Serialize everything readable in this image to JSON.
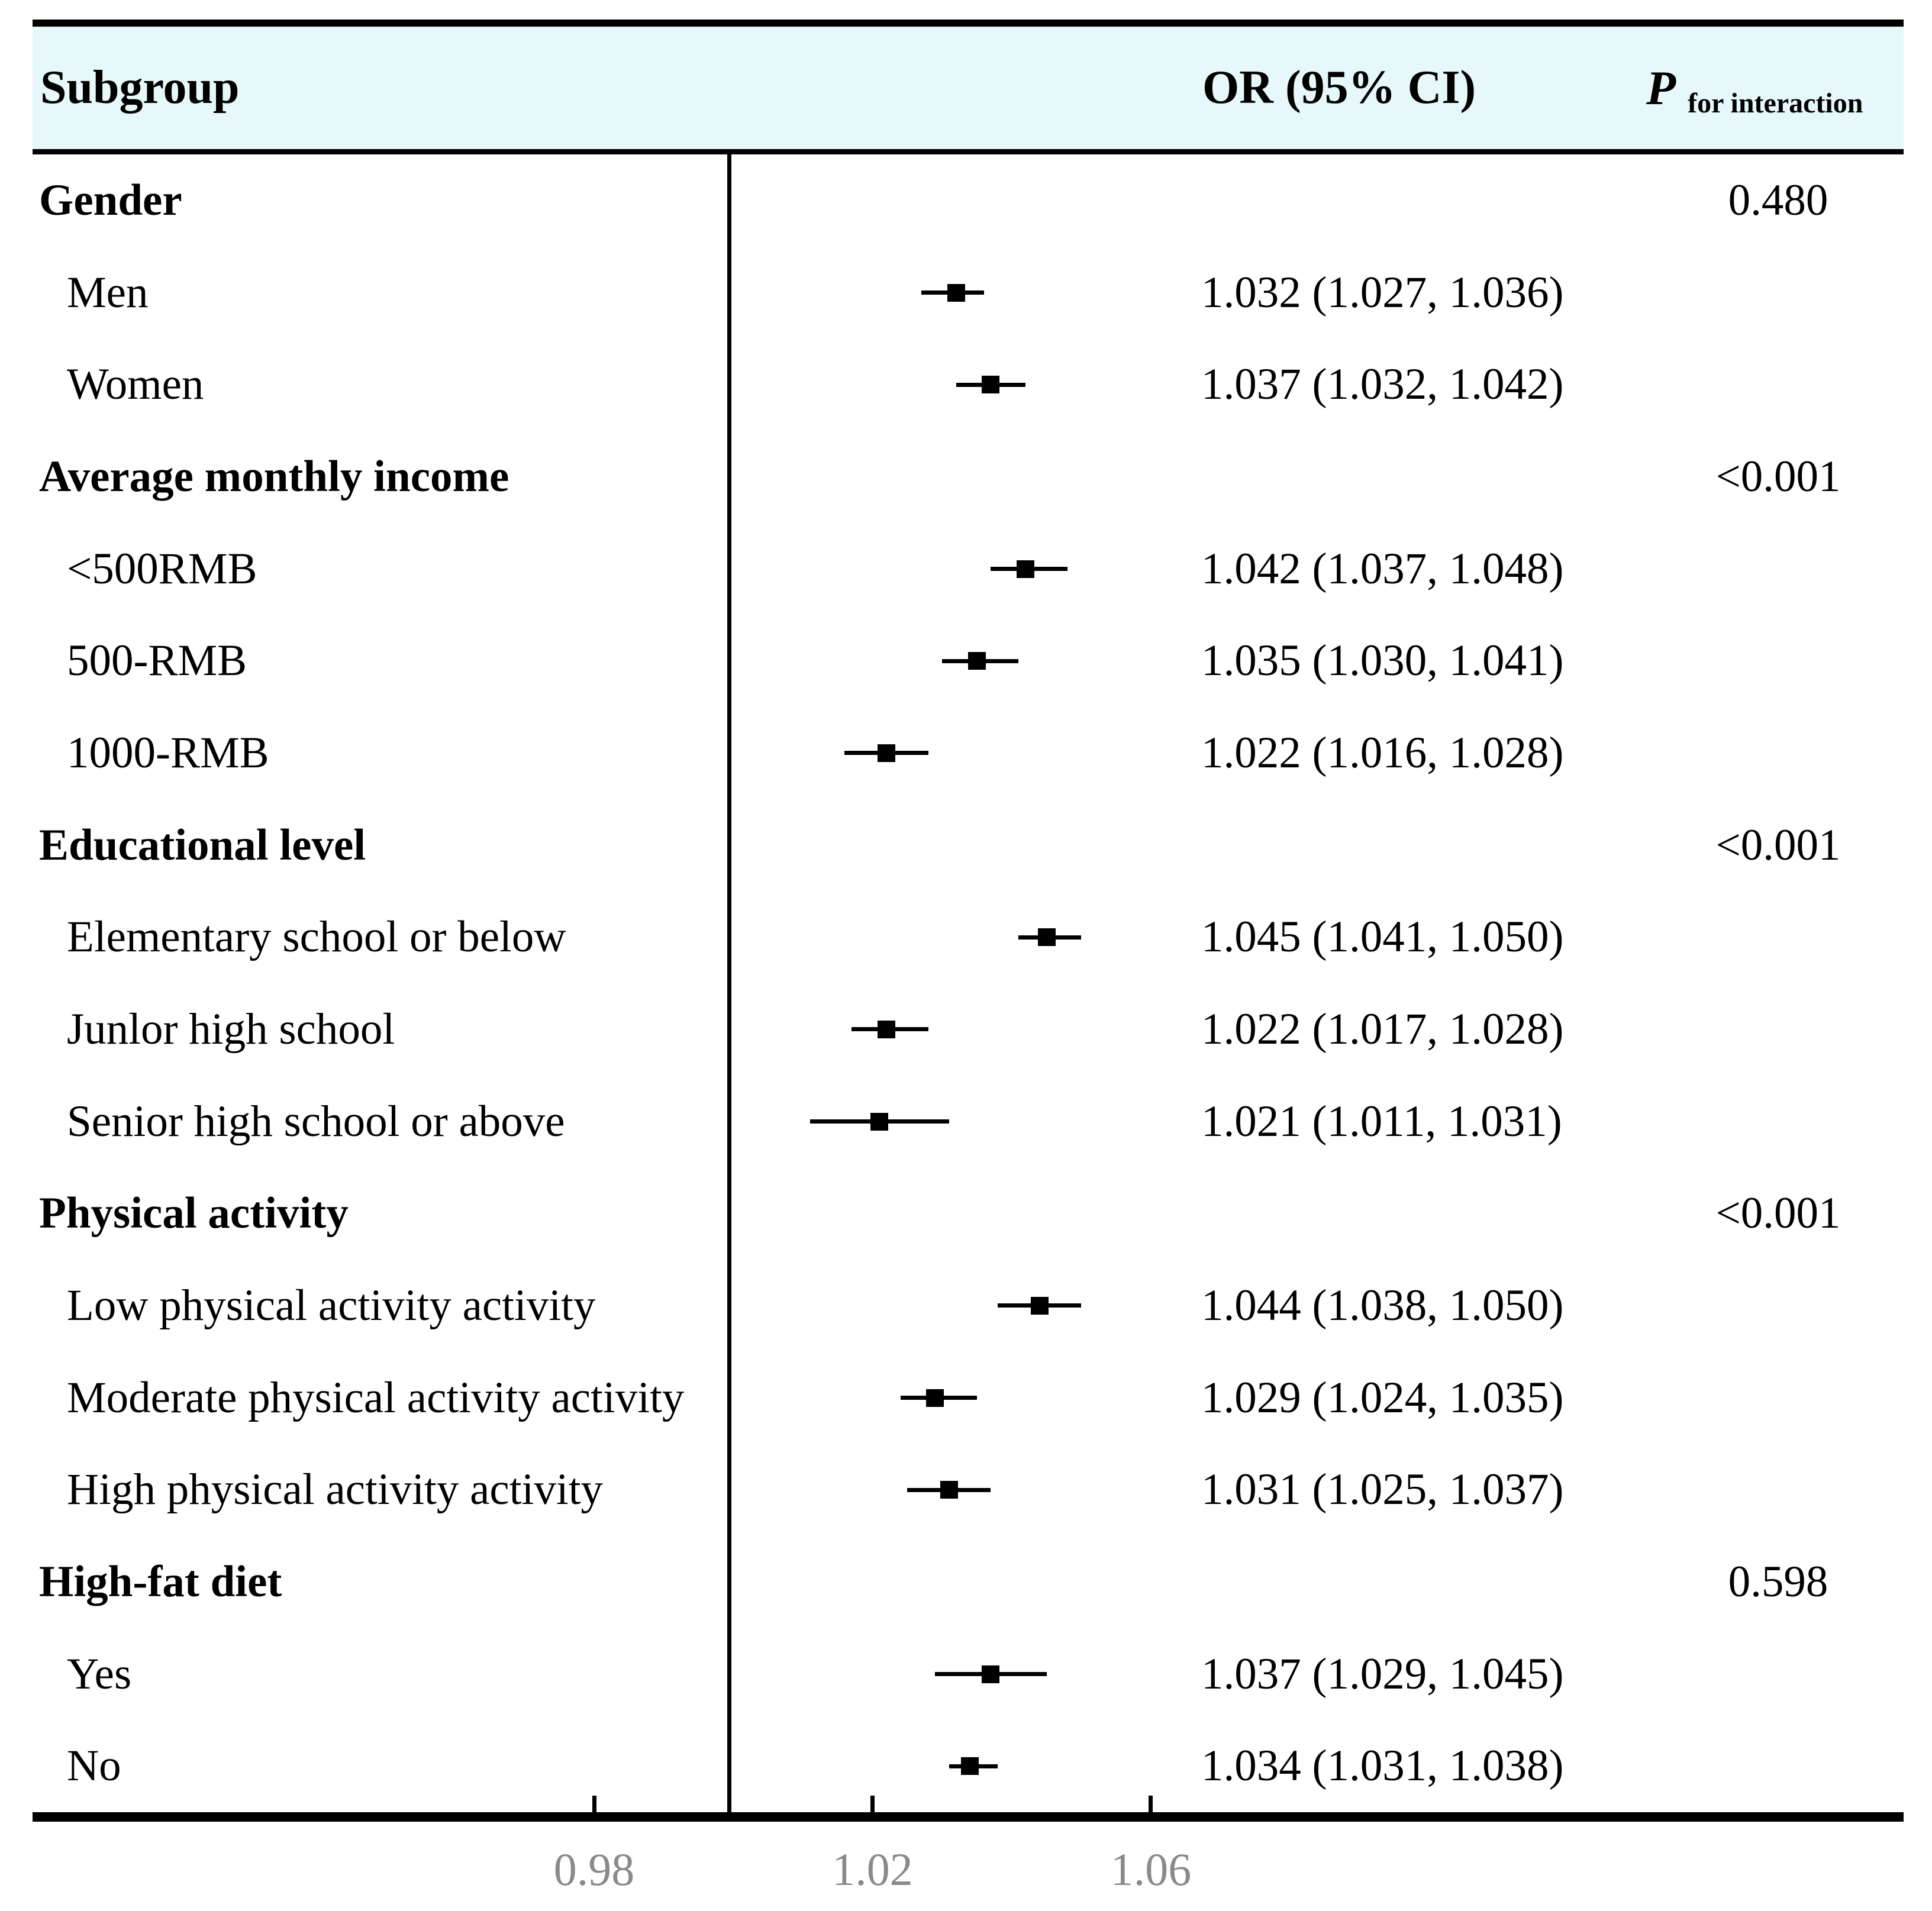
{
  "figure": {
    "header": {
      "subgroup": "Subgroup",
      "or_ci": "OR (95% CI)",
      "p": "P",
      "p_sub": "for interaction"
    },
    "colors": {
      "header_bg": "#e7f8fa",
      "line": "#000000",
      "marker": "#000000",
      "tick_label": "#8a8a8a"
    }
  },
  "axis": {
    "ticks": [
      {
        "label": "0.98",
        "value": 0.98
      },
      {
        "label": "1.02",
        "value": 1.02
      },
      {
        "label": "1.06",
        "value": 1.06
      }
    ]
  },
  "rows": [
    {
      "kind": "section",
      "label": "Gender",
      "p": "0.480"
    },
    {
      "kind": "item",
      "label": "Men",
      "or": 1.032,
      "lo": 1.027,
      "hi": 1.036,
      "text": "1.032 (1.027, 1.036)"
    },
    {
      "kind": "item",
      "label": "Women",
      "or": 1.037,
      "lo": 1.032,
      "hi": 1.042,
      "text": "1.037 (1.032, 1.042)"
    },
    {
      "kind": "section",
      "label": "Average monthly income",
      "p": "<0.001"
    },
    {
      "kind": "item",
      "label": "<500RMB",
      "or": 1.042,
      "lo": 1.037,
      "hi": 1.048,
      "text": "1.042 (1.037, 1.048)"
    },
    {
      "kind": "item",
      "label": "500-RMB",
      "or": 1.035,
      "lo": 1.03,
      "hi": 1.041,
      "text": "1.035 (1.030, 1.041)"
    },
    {
      "kind": "item",
      "label": "1000-RMB",
      "or": 1.022,
      "lo": 1.016,
      "hi": 1.028,
      "text": "1.022 (1.016, 1.028)"
    },
    {
      "kind": "section",
      "label": "Educational level",
      "p": "<0.001"
    },
    {
      "kind": "item",
      "label": "Elementary school or below",
      "or": 1.045,
      "lo": 1.041,
      "hi": 1.05,
      "text": "1.045 (1.041, 1.050)"
    },
    {
      "kind": "item",
      "label": "Junlor high school",
      "or": 1.022,
      "lo": 1.017,
      "hi": 1.028,
      "text": "1.022 (1.017, 1.028)"
    },
    {
      "kind": "item",
      "label": "Senior high school or above",
      "or": 1.021,
      "lo": 1.011,
      "hi": 1.031,
      "text": "1.021 (1.011, 1.031)"
    },
    {
      "kind": "section",
      "label": "Physical activity",
      "p": "<0.001"
    },
    {
      "kind": "item",
      "label": "Low physical activity activity",
      "or": 1.044,
      "lo": 1.038,
      "hi": 1.05,
      "text": "1.044 (1.038, 1.050)"
    },
    {
      "kind": "item",
      "label": "Moderate physical activity activity",
      "or": 1.029,
      "lo": 1.024,
      "hi": 1.035,
      "text": "1.029 (1.024, 1.035)"
    },
    {
      "kind": "item",
      "label": "High physical activity activity",
      "or": 1.031,
      "lo": 1.025,
      "hi": 1.037,
      "text": "1.031 (1.025, 1.037)"
    },
    {
      "kind": "section",
      "label": "High-fat diet",
      "p": "0.598"
    },
    {
      "kind": "item",
      "label": "Yes",
      "or": 1.037,
      "lo": 1.029,
      "hi": 1.045,
      "text": "1.037 (1.029, 1.045)"
    },
    {
      "kind": "item",
      "label": "No",
      "or": 1.034,
      "lo": 1.031,
      "hi": 1.038,
      "text": "1.034 (1.031, 1.038)"
    }
  ],
  "chart_data": {
    "type": "scatter",
    "subtype": "forest-plot",
    "title": "",
    "xlabel": "OR (95% CI)",
    "x_ticks": [
      0.98,
      1.02,
      1.06
    ],
    "xlim": [
      0.955,
      1.075
    ],
    "reference_line": 1.0,
    "columns": [
      "Subgroup",
      "OR (95% CI)",
      "P for interaction"
    ],
    "groups": [
      {
        "name": "Gender",
        "p_for_interaction": "0.480",
        "items": [
          {
            "label": "Men",
            "or": 1.032,
            "ci": [
              1.027,
              1.036
            ]
          },
          {
            "label": "Women",
            "or": 1.037,
            "ci": [
              1.032,
              1.042
            ]
          }
        ]
      },
      {
        "name": "Average monthly income",
        "p_for_interaction": "<0.001",
        "items": [
          {
            "label": "<500RMB",
            "or": 1.042,
            "ci": [
              1.037,
              1.048
            ]
          },
          {
            "label": "500-RMB",
            "or": 1.035,
            "ci": [
              1.03,
              1.041
            ]
          },
          {
            "label": "1000-RMB",
            "or": 1.022,
            "ci": [
              1.016,
              1.028
            ]
          }
        ]
      },
      {
        "name": "Educational level",
        "p_for_interaction": "<0.001",
        "items": [
          {
            "label": "Elementary school or below",
            "or": 1.045,
            "ci": [
              1.041,
              1.05
            ]
          },
          {
            "label": "Junlor high school",
            "or": 1.022,
            "ci": [
              1.017,
              1.028
            ]
          },
          {
            "label": "Senior high school or above",
            "or": 1.021,
            "ci": [
              1.011,
              1.031
            ]
          }
        ]
      },
      {
        "name": "Physical activity",
        "p_for_interaction": "<0.001",
        "items": [
          {
            "label": "Low physical activity activity",
            "or": 1.044,
            "ci": [
              1.038,
              1.05
            ]
          },
          {
            "label": "Moderate physical activity activity",
            "or": 1.029,
            "ci": [
              1.024,
              1.035
            ]
          },
          {
            "label": "High physical activity activity",
            "or": 1.031,
            "ci": [
              1.025,
              1.037
            ]
          }
        ]
      },
      {
        "name": "High-fat diet",
        "p_for_interaction": "0.598",
        "items": [
          {
            "label": "Yes",
            "or": 1.037,
            "ci": [
              1.029,
              1.045
            ]
          },
          {
            "label": "No",
            "or": 1.034,
            "ci": [
              1.031,
              1.038
            ]
          }
        ]
      }
    ]
  }
}
